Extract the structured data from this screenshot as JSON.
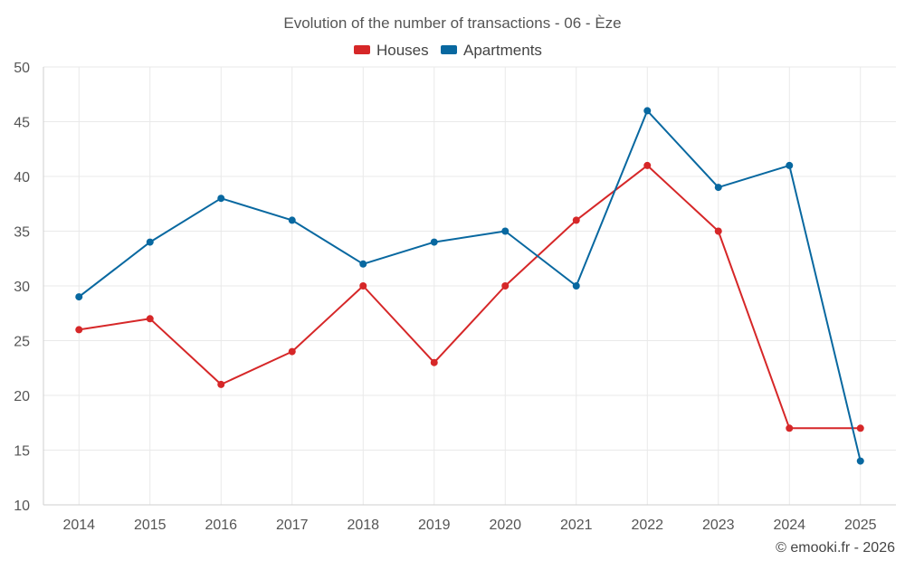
{
  "chart_data": {
    "type": "line",
    "title": "Evolution of the number of transactions - 06 - Èze",
    "categories": [
      "2014",
      "2015",
      "2016",
      "2017",
      "2018",
      "2019",
      "2020",
      "2021",
      "2022",
      "2023",
      "2024",
      "2025"
    ],
    "series": [
      {
        "name": "Houses",
        "color": "#d62728",
        "values": [
          26,
          27,
          21,
          24,
          30,
          23,
          30,
          36,
          41,
          35,
          17,
          17
        ]
      },
      {
        "name": "Apartments",
        "color": "#0868a0",
        "values": [
          29,
          34,
          38,
          36,
          32,
          34,
          35,
          30,
          46,
          39,
          41,
          14
        ]
      }
    ],
    "ylim": [
      10,
      50
    ],
    "yticks": [
      10,
      15,
      20,
      25,
      30,
      35,
      40,
      45,
      50
    ],
    "xlabel": "",
    "ylabel": "",
    "grid": true,
    "legend": "top-center"
  },
  "credit": "© emooki.fr - 2026"
}
